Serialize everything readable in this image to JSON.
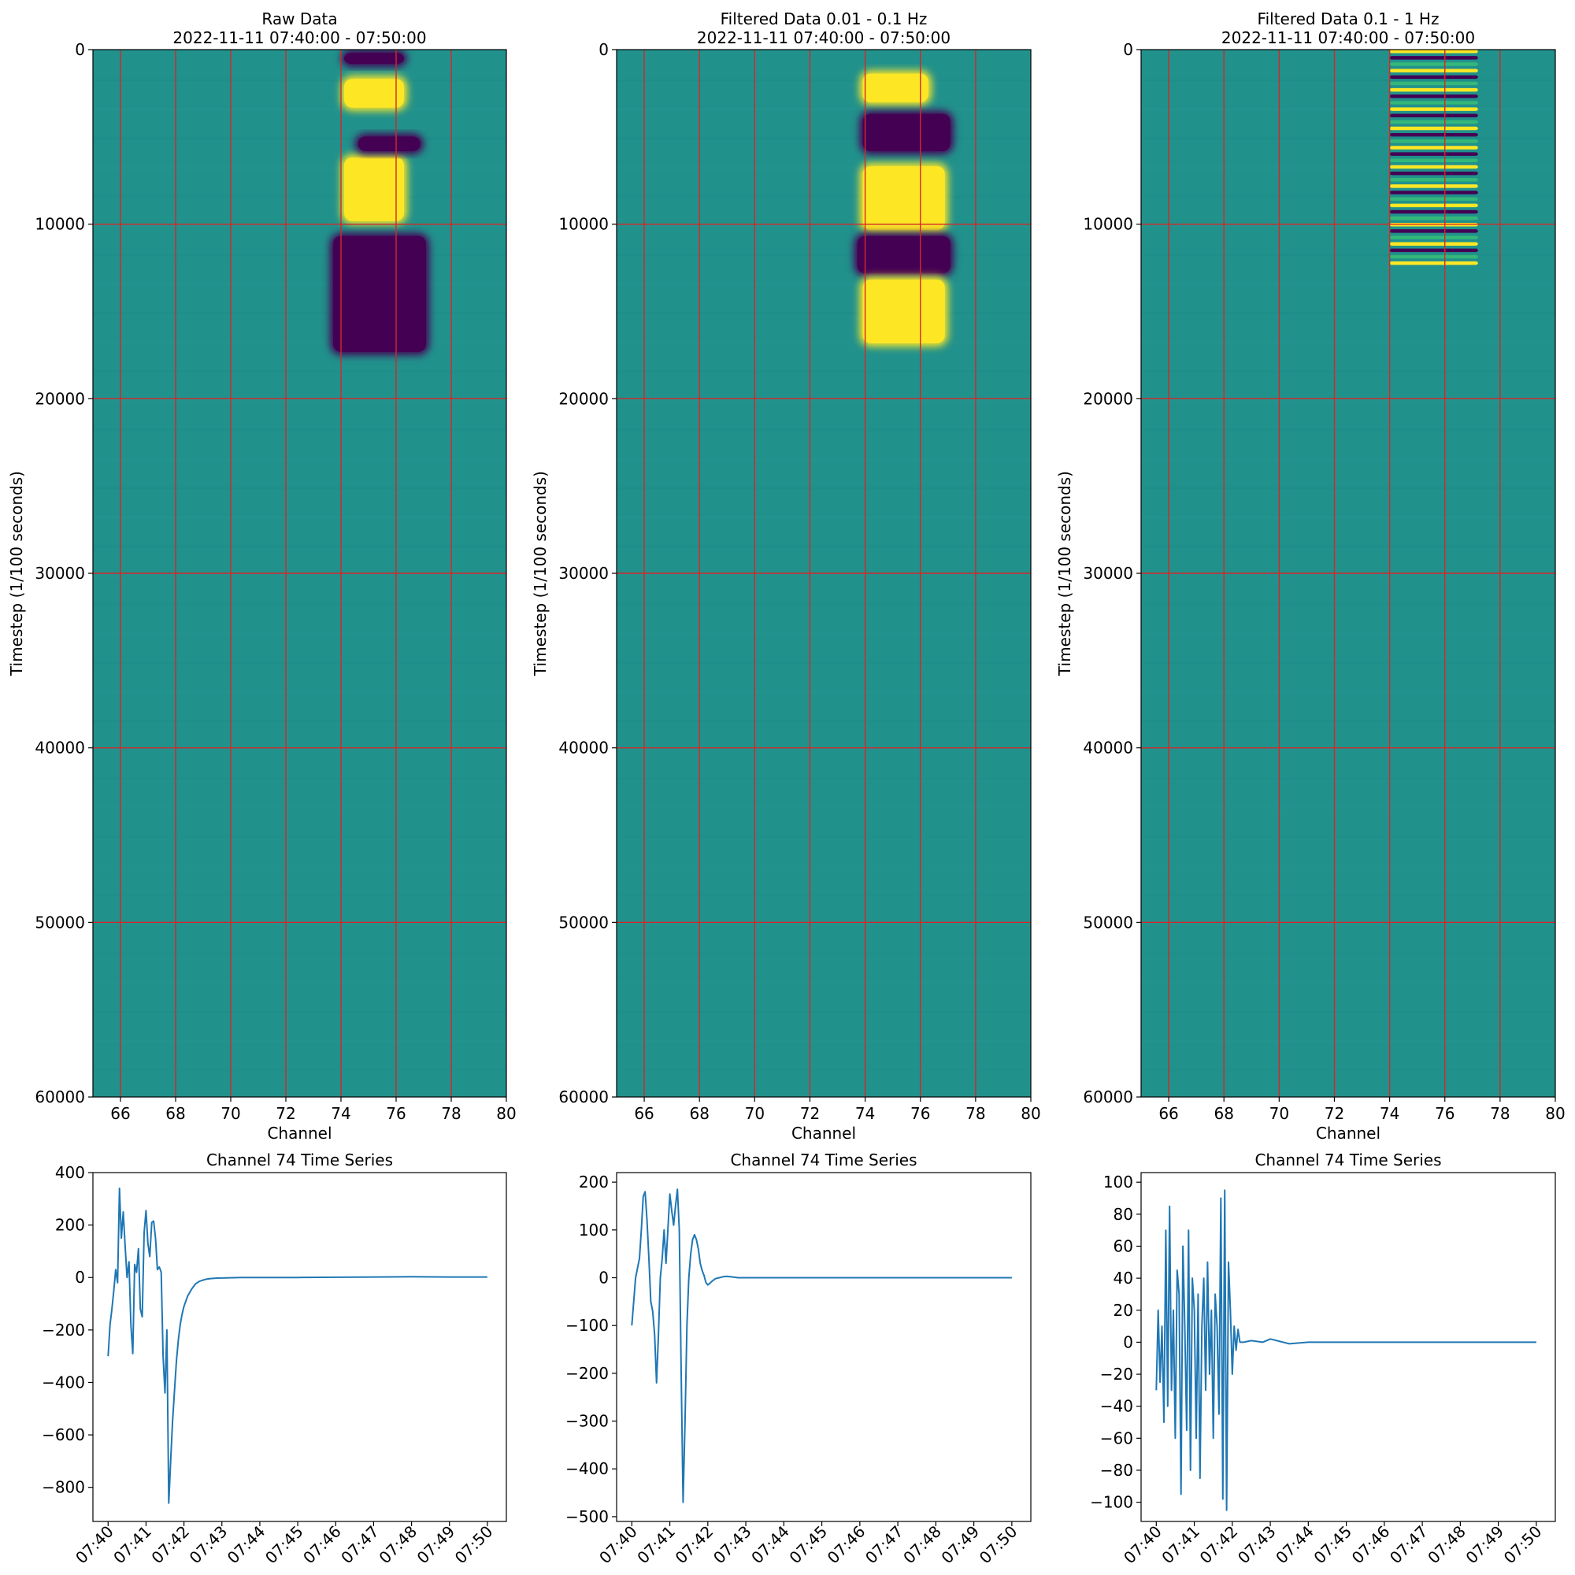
{
  "chart_data": [
    {
      "type": "heatmap",
      "title_lines": [
        "Raw Data",
        "2022-11-11 07:40:00 - 07:50:00"
      ],
      "xlabel": "Channel",
      "ylabel": "Timestep (1/100 seconds)",
      "xlim": [
        65,
        80
      ],
      "ylim": [
        60000,
        0
      ],
      "xticks": [
        66,
        68,
        70,
        72,
        74,
        76,
        78,
        80
      ],
      "yticks": [
        0,
        10000,
        20000,
        30000,
        40000,
        50000,
        60000
      ],
      "grid": true,
      "grid_color": "#d62728",
      "colormap": "viridis",
      "colors": {
        "high": "#fde725",
        "low": "#440154",
        "mid": "#21918c"
      },
      "features": [
        {
          "kind": "high",
          "x": [
            74,
            76.4
          ],
          "y": [
            1500,
            3500
          ]
        },
        {
          "kind": "high",
          "x": [
            74,
            76.4
          ],
          "y": [
            6000,
            10000
          ]
        },
        {
          "kind": "low",
          "x": [
            74,
            76.4
          ],
          "y": [
            0,
            1000
          ]
        },
        {
          "kind": "low",
          "x": [
            74.5,
            77
          ],
          "y": [
            4800,
            6000
          ]
        },
        {
          "kind": "low",
          "x": [
            73.6,
            77.2
          ],
          "y": [
            10500,
            17500
          ]
        }
      ]
    },
    {
      "type": "heatmap",
      "title_lines": [
        "Filtered Data 0.01 - 0.1 Hz",
        "2022-11-11 07:40:00 - 07:50:00"
      ],
      "xlabel": "Channel",
      "ylabel": "Timestep (1/100 seconds)",
      "xlim": [
        65,
        80
      ],
      "ylim": [
        60000,
        0
      ],
      "xticks": [
        66,
        68,
        70,
        72,
        74,
        76,
        78,
        80
      ],
      "yticks": [
        0,
        10000,
        20000,
        30000,
        40000,
        50000,
        60000
      ],
      "grid": true,
      "grid_color": "#d62728",
      "colormap": "viridis",
      "colors": {
        "high": "#fde725",
        "low": "#440154",
        "mid": "#21918c"
      },
      "features": [
        {
          "kind": "high",
          "x": [
            73.8,
            76.4
          ],
          "y": [
            1200,
            3200
          ]
        },
        {
          "kind": "low",
          "x": [
            73.8,
            77.2
          ],
          "y": [
            3500,
            6000
          ]
        },
        {
          "kind": "high",
          "x": [
            73.8,
            77
          ],
          "y": [
            6500,
            10500
          ]
        },
        {
          "kind": "low",
          "x": [
            73.6,
            77.2
          ],
          "y": [
            10500,
            13000
          ]
        },
        {
          "kind": "high",
          "x": [
            73.8,
            77
          ],
          "y": [
            13000,
            17000
          ]
        }
      ]
    },
    {
      "type": "heatmap",
      "title_lines": [
        "Filtered Data 0.1 - 1 Hz",
        "2022-11-11 07:40:00 - 07:50:00"
      ],
      "xlabel": "Channel",
      "ylabel": "Timestep (1/100 seconds)",
      "xlim": [
        65,
        80
      ],
      "ylim": [
        60000,
        0
      ],
      "xticks": [
        66,
        68,
        70,
        72,
        74,
        76,
        78,
        80
      ],
      "yticks": [
        0,
        10000,
        20000,
        30000,
        40000,
        50000,
        60000
      ],
      "grid": true,
      "grid_color": "#d62728",
      "colormap": "viridis",
      "colors": {
        "high": "#fde725",
        "low": "#440154",
        "mid": "#21918c"
      },
      "features": [
        {
          "kind": "band",
          "x": [
            74,
            77.2
          ],
          "y": [
            0,
            12500
          ]
        }
      ]
    },
    {
      "type": "line",
      "title": "Channel 74 Time Series",
      "xlabel": "",
      "ylabel": "",
      "xticks": [
        "07:40",
        "07:41",
        "07:42",
        "07:43",
        "07:44",
        "07:45",
        "07:46",
        "07:47",
        "07:48",
        "07:49",
        "07:50"
      ],
      "xlim_minutes": [
        -0.4,
        10.5
      ],
      "ylim": [
        -930,
        400
      ],
      "yticks": [
        400,
        200,
        0,
        -200,
        -400,
        -600,
        -800
      ],
      "yticklabels": [
        "400",
        "200",
        "0",
        "−200",
        "−400",
        "−600",
        "−800"
      ],
      "color": "#1f77b4",
      "series": [
        {
          "x": [
            0,
            0.05,
            0.1,
            0.15,
            0.2,
            0.25,
            0.3,
            0.35,
            0.4,
            0.45,
            0.5,
            0.55,
            0.6,
            0.65,
            0.7,
            0.75,
            0.8,
            0.85,
            0.9,
            0.95,
            1.0,
            1.05,
            1.1,
            1.15,
            1.2,
            1.25,
            1.3,
            1.35,
            1.4,
            1.45,
            1.5,
            1.55,
            1.6,
            1.65,
            1.7,
            1.75,
            1.8,
            1.85,
            1.9,
            1.95,
            2.0,
            2.1,
            2.2,
            2.3,
            2.4,
            2.5,
            2.6,
            2.7,
            2.8,
            2.9,
            3.0,
            3.2,
            3.5,
            4.0,
            4.5,
            5,
            6,
            7,
            8,
            9,
            10
          ],
          "y": [
            -300,
            -180,
            -120,
            -50,
            30,
            -20,
            340,
            150,
            250,
            120,
            0,
            60,
            -180,
            -290,
            50,
            20,
            110,
            -120,
            -150,
            170,
            255,
            130,
            80,
            210,
            215,
            150,
            30,
            40,
            20,
            -300,
            -440,
            -200,
            -860,
            -700,
            -550,
            -430,
            -320,
            -240,
            -180,
            -140,
            -110,
            -70,
            -45,
            -25,
            -15,
            -10,
            -6,
            -4,
            -3,
            -2,
            -2,
            -1,
            0,
            0,
            0,
            0,
            1,
            2,
            3,
            2,
            2
          ]
        }
      ]
    },
    {
      "type": "line",
      "title": "Channel 74 Time Series",
      "xlabel": "",
      "ylabel": "",
      "xticks": [
        "07:40",
        "07:41",
        "07:42",
        "07:43",
        "07:44",
        "07:45",
        "07:46",
        "07:47",
        "07:48",
        "07:49",
        "07:50"
      ],
      "xlim_minutes": [
        -0.4,
        10.5
      ],
      "ylim": [
        -510,
        220
      ],
      "yticks": [
        200,
        100,
        0,
        -100,
        -200,
        -300,
        -400,
        -500
      ],
      "yticklabels": [
        "200",
        "100",
        "0",
        "−100",
        "−200",
        "−300",
        "−400",
        "−500"
      ],
      "color": "#1f77b4",
      "series": [
        {
          "x": [
            0,
            0.1,
            0.2,
            0.25,
            0.3,
            0.35,
            0.4,
            0.45,
            0.5,
            0.55,
            0.6,
            0.65,
            0.7,
            0.75,
            0.8,
            0.85,
            0.9,
            0.95,
            1.0,
            1.05,
            1.1,
            1.15,
            1.2,
            1.25,
            1.3,
            1.35,
            1.4,
            1.45,
            1.5,
            1.55,
            1.6,
            1.65,
            1.7,
            1.75,
            1.8,
            1.85,
            1.9,
            1.95,
            2.0,
            2.05,
            2.1,
            2.15,
            2.2,
            2.3,
            2.4,
            2.5,
            2.6,
            2.7,
            2.8,
            3.0,
            3.2,
            3.5,
            4.0,
            5,
            6,
            7,
            8,
            9,
            10
          ],
          "y": [
            -100,
            0,
            40,
            100,
            170,
            180,
            120,
            40,
            -50,
            -70,
            -120,
            -220,
            -120,
            0,
            40,
            100,
            30,
            100,
            175,
            140,
            110,
            150,
            185,
            100,
            -200,
            -470,
            -300,
            -100,
            0,
            50,
            80,
            90,
            80,
            60,
            30,
            15,
            5,
            -10,
            -15,
            -12,
            -8,
            -5,
            -2,
            0,
            2,
            3,
            2,
            1,
            0,
            0,
            0,
            0,
            0,
            0,
            0,
            0,
            0,
            0,
            0
          ]
        }
      ]
    },
    {
      "type": "line",
      "title": "Channel 74 Time Series",
      "xlabel": "",
      "ylabel": "",
      "xticks": [
        "07:40",
        "07:41",
        "07:42",
        "07:43",
        "07:44",
        "07:45",
        "07:46",
        "07:47",
        "07:48",
        "07:49",
        "07:50"
      ],
      "xlim_minutes": [
        -0.4,
        10.5
      ],
      "ylim": [
        -112,
        106
      ],
      "yticks": [
        100,
        80,
        60,
        40,
        20,
        0,
        -20,
        -40,
        -60,
        -80,
        -100
      ],
      "yticklabels": [
        "100",
        "80",
        "60",
        "40",
        "20",
        "0",
        "−20",
        "−40",
        "−60",
        "−80",
        "−100"
      ],
      "color": "#1f77b4",
      "series": [
        {
          "x": [
            0,
            0.05,
            0.1,
            0.15,
            0.2,
            0.25,
            0.3,
            0.35,
            0.4,
            0.45,
            0.5,
            0.55,
            0.6,
            0.65,
            0.7,
            0.75,
            0.8,
            0.85,
            0.9,
            0.95,
            1.0,
            1.05,
            1.1,
            1.15,
            1.2,
            1.25,
            1.3,
            1.35,
            1.4,
            1.45,
            1.5,
            1.55,
            1.6,
            1.65,
            1.7,
            1.75,
            1.8,
            1.85,
            1.9,
            1.95,
            2.0,
            2.05,
            2.1,
            2.15,
            2.2,
            2.3,
            2.5,
            2.8,
            3.0,
            3.5,
            4.0,
            5,
            6,
            7,
            8,
            9,
            10
          ],
          "y": [
            -30,
            20,
            -25,
            10,
            -50,
            70,
            -40,
            85,
            -30,
            20,
            -60,
            45,
            30,
            -95,
            60,
            10,
            -55,
            70,
            -80,
            40,
            20,
            -60,
            30,
            -85,
            10,
            40,
            -30,
            50,
            -20,
            20,
            -60,
            30,
            10,
            -45,
            90,
            -98,
            95,
            -105,
            50,
            20,
            -20,
            10,
            -5,
            8,
            0,
            0,
            1,
            0,
            2,
            -1,
            0,
            0,
            0,
            0,
            0,
            0,
            0
          ]
        }
      ]
    }
  ]
}
